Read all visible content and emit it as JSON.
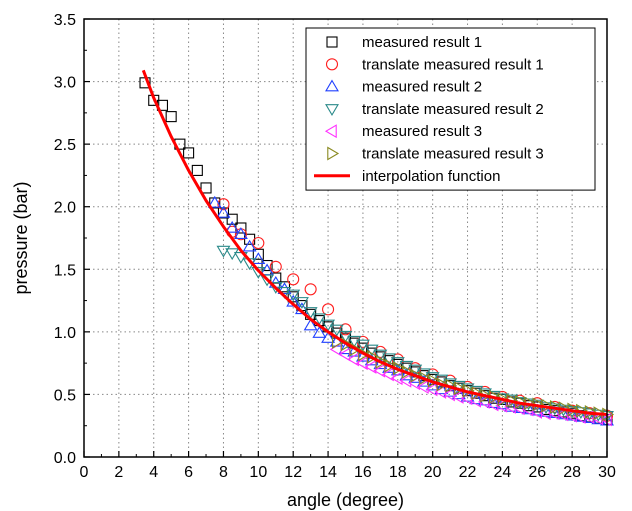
{
  "chart_data": {
    "type": "scatter",
    "xlabel": "angle (degree)",
    "ylabel": "pressure (bar)",
    "xlim": [
      0,
      30
    ],
    "ylim": [
      0.0,
      3.5
    ],
    "xticks": [
      "0",
      "2",
      "4",
      "6",
      "8",
      "10",
      "12",
      "14",
      "16",
      "18",
      "20",
      "22",
      "24",
      "26",
      "28",
      "30"
    ],
    "yticks": [
      "0.0",
      "0.5",
      "1.0",
      "1.5",
      "2.0",
      "2.5",
      "3.0",
      "3.5"
    ],
    "grid": "dotted",
    "legend_position": "top-right",
    "series": [
      {
        "name": "measured result 1",
        "marker": "square",
        "color": "#000000",
        "x": [
          3.5,
          4.0,
          4.5,
          5.0,
          5.5,
          6.0,
          6.5,
          7.0,
          7.5,
          8.0,
          8.5,
          9.0,
          9.5,
          10.0,
          10.5,
          11.0,
          11.5,
          12.0,
          12.5,
          13.0,
          13.5,
          14.0,
          14.5,
          15.0,
          15.5,
          16.0,
          16.5,
          17.0,
          17.5,
          18.0,
          18.5,
          19.0,
          19.5,
          20.0,
          20.5,
          21.0,
          21.5,
          22.0,
          22.5,
          23.0,
          23.5,
          24.0,
          24.5,
          25.0,
          25.5,
          26.0,
          26.5,
          27.0,
          27.5,
          28.0,
          28.5,
          29.0,
          29.5,
          30.0
        ],
        "y": [
          2.99,
          2.85,
          2.81,
          2.72,
          2.5,
          2.43,
          2.29,
          2.15,
          2.03,
          1.95,
          1.9,
          1.83,
          1.74,
          1.62,
          1.53,
          1.43,
          1.36,
          1.28,
          1.21,
          1.14,
          1.09,
          1.04,
          0.99,
          0.95,
          0.91,
          0.87,
          0.83,
          0.8,
          0.77,
          0.74,
          0.71,
          0.68,
          0.65,
          0.62,
          0.6,
          0.57,
          0.55,
          0.53,
          0.51,
          0.49,
          0.47,
          0.46,
          0.44,
          0.43,
          0.41,
          0.4,
          0.38,
          0.37,
          0.36,
          0.35,
          0.33,
          0.32,
          0.31,
          0.3
        ]
      },
      {
        "name": "translate measured result 1",
        "marker": "circle",
        "color": "#ff2020",
        "x": [
          8.0,
          8.5,
          9.0,
          10.0,
          11.0,
          12.0,
          13.0,
          14.0,
          15.0,
          16.0,
          17.0,
          18.0,
          19.0,
          20.0,
          21.0,
          22.0,
          23.0,
          24.0,
          25.0,
          26.0,
          27.0,
          28.0,
          29.0,
          30.0
        ],
        "y": [
          2.02,
          1.8,
          1.78,
          1.71,
          1.52,
          1.42,
          1.34,
          1.18,
          1.02,
          0.92,
          0.84,
          0.78,
          0.71,
          0.66,
          0.61,
          0.56,
          0.52,
          0.48,
          0.45,
          0.43,
          0.4,
          0.37,
          0.35,
          0.33
        ]
      },
      {
        "name": "measured result 2",
        "marker": "triangle-up",
        "color": "#2040ff",
        "x": [
          7.5,
          8.0,
          8.5,
          9.0,
          9.5,
          10.0,
          10.5,
          11.0,
          11.5,
          12.0,
          12.5,
          13.0,
          13.5,
          14.0,
          14.5,
          15.0,
          15.5,
          16.0,
          16.5,
          17.0,
          17.5,
          18.0,
          18.5,
          19.0,
          19.5,
          20.0,
          20.5,
          21.0,
          21.5,
          22.0,
          22.5,
          23.0,
          23.5,
          24.0,
          24.5,
          25.0,
          25.5,
          26.0,
          26.5,
          27.0,
          27.5,
          28.0,
          28.5,
          29.0,
          29.5,
          30.0
        ],
        "y": [
          2.03,
          1.95,
          1.83,
          1.78,
          1.68,
          1.58,
          1.49,
          1.39,
          1.34,
          1.24,
          1.18,
          1.05,
          0.99,
          0.95,
          0.92,
          0.86,
          0.84,
          0.8,
          0.77,
          0.74,
          0.71,
          0.69,
          0.65,
          0.63,
          0.6,
          0.57,
          0.54,
          0.52,
          0.5,
          0.48,
          0.46,
          0.45,
          0.43,
          0.42,
          0.4,
          0.39,
          0.38,
          0.37,
          0.36,
          0.35,
          0.34,
          0.33,
          0.32,
          0.31,
          0.3,
          0.29
        ]
      },
      {
        "name": "translate measured result 2",
        "marker": "triangle-down",
        "color": "#2a8a8a",
        "x": [
          8.0,
          8.5,
          9.0,
          9.5,
          10.0,
          10.5,
          11.0,
          11.5,
          12.0,
          12.5,
          13.0,
          13.5,
          14.0,
          14.5,
          15.0,
          15.5,
          16.0,
          16.5,
          17.0,
          17.5,
          18.0,
          18.5,
          19.0,
          19.5,
          20.0,
          20.5,
          21.0,
          21.5,
          22.0,
          22.5,
          23.0,
          23.5,
          24.0,
          24.5,
          25.0,
          25.5,
          26.0,
          26.5,
          27.0,
          27.5,
          28.0,
          28.5,
          29.0,
          29.5,
          30.0
        ],
        "y": [
          1.65,
          1.63,
          1.6,
          1.55,
          1.48,
          1.42,
          1.36,
          1.32,
          1.3,
          1.24,
          1.16,
          1.11,
          1.06,
          1.02,
          0.97,
          0.93,
          0.9,
          0.86,
          0.82,
          0.79,
          0.76,
          0.73,
          0.7,
          0.67,
          0.64,
          0.62,
          0.59,
          0.57,
          0.55,
          0.53,
          0.51,
          0.49,
          0.47,
          0.46,
          0.44,
          0.43,
          0.42,
          0.4,
          0.39,
          0.38,
          0.37,
          0.36,
          0.35,
          0.34,
          0.33
        ]
      },
      {
        "name": "measured result 3",
        "marker": "triangle-left",
        "color": "#ff30ff",
        "x": [
          14.5,
          15.0,
          15.5,
          16.0,
          16.5,
          17.0,
          17.5,
          18.0,
          18.5,
          19.0,
          19.5,
          20.0,
          20.5,
          21.0,
          21.5,
          22.0,
          22.5,
          23.0,
          23.5,
          24.0,
          24.5,
          25.0,
          25.5,
          26.0,
          26.5,
          27.0,
          27.5,
          28.0,
          28.5,
          29.0,
          29.5,
          30.0
        ],
        "y": [
          0.86,
          0.82,
          0.78,
          0.75,
          0.72,
          0.69,
          0.66,
          0.63,
          0.61,
          0.59,
          0.56,
          0.54,
          0.52,
          0.5,
          0.48,
          0.47,
          0.45,
          0.44,
          0.42,
          0.41,
          0.4,
          0.39,
          0.38,
          0.36,
          0.35,
          0.35,
          0.34,
          0.33,
          0.32,
          0.32,
          0.31,
          0.3
        ]
      },
      {
        "name": "translate measured result 3",
        "marker": "triangle-right",
        "color": "#8a8a20",
        "x": [
          14.5,
          15.0,
          15.5,
          16.0,
          16.5,
          17.0,
          17.5,
          18.0,
          18.5,
          19.0,
          19.5,
          20.0,
          20.5,
          21.0,
          21.5,
          22.0,
          22.5,
          23.0,
          23.5,
          24.0,
          24.5,
          25.0,
          25.5,
          26.0,
          26.5,
          27.0,
          27.5,
          28.0,
          28.5,
          29.0,
          29.5,
          30.0
        ],
        "y": [
          0.92,
          0.9,
          0.86,
          0.82,
          0.8,
          0.76,
          0.73,
          0.71,
          0.68,
          0.65,
          0.63,
          0.61,
          0.58,
          0.57,
          0.55,
          0.53,
          0.51,
          0.49,
          0.48,
          0.46,
          0.45,
          0.44,
          0.43,
          0.42,
          0.41,
          0.4,
          0.39,
          0.38,
          0.37,
          0.36,
          0.35,
          0.34
        ]
      },
      {
        "name": "interpolation function",
        "type": "line",
        "color": "#ff0000",
        "x": [
          3.4,
          4,
          5,
          6,
          7,
          8,
          9,
          10,
          11,
          12,
          13,
          14,
          15,
          16,
          17,
          18,
          19,
          20,
          21,
          22,
          23,
          24,
          25,
          26,
          27,
          28,
          29,
          30
        ],
        "y": [
          3.09,
          2.87,
          2.56,
          2.29,
          2.05,
          1.84,
          1.65,
          1.49,
          1.35,
          1.22,
          1.1,
          1.0,
          0.91,
          0.83,
          0.76,
          0.7,
          0.65,
          0.6,
          0.56,
          0.52,
          0.49,
          0.46,
          0.43,
          0.41,
          0.39,
          0.37,
          0.35,
          0.34
        ]
      }
    ]
  }
}
